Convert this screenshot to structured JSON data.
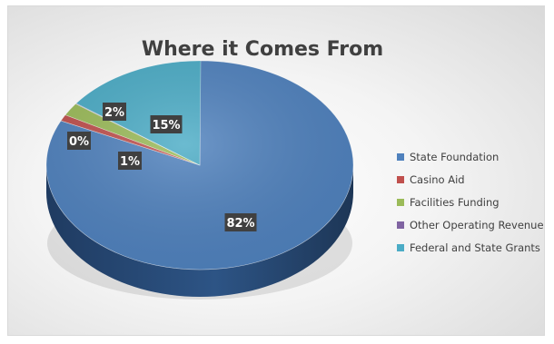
{
  "chart_data": {
    "type": "pie",
    "title": "Where it Comes From",
    "categories": [
      "State Foundation",
      "Casino Aid",
      "Facilities Funding",
      "Other Operating Revenue",
      "Federal and State Grants"
    ],
    "values": [
      82,
      1,
      2,
      0,
      15
    ],
    "data_labels": [
      "82%",
      "1%",
      "2%",
      "0%",
      "15%"
    ],
    "colors": [
      "#4f81bd",
      "#c0504d",
      "#9bbb59",
      "#8064a2",
      "#4bacc6"
    ],
    "legend_position": "right",
    "style": "3d"
  }
}
